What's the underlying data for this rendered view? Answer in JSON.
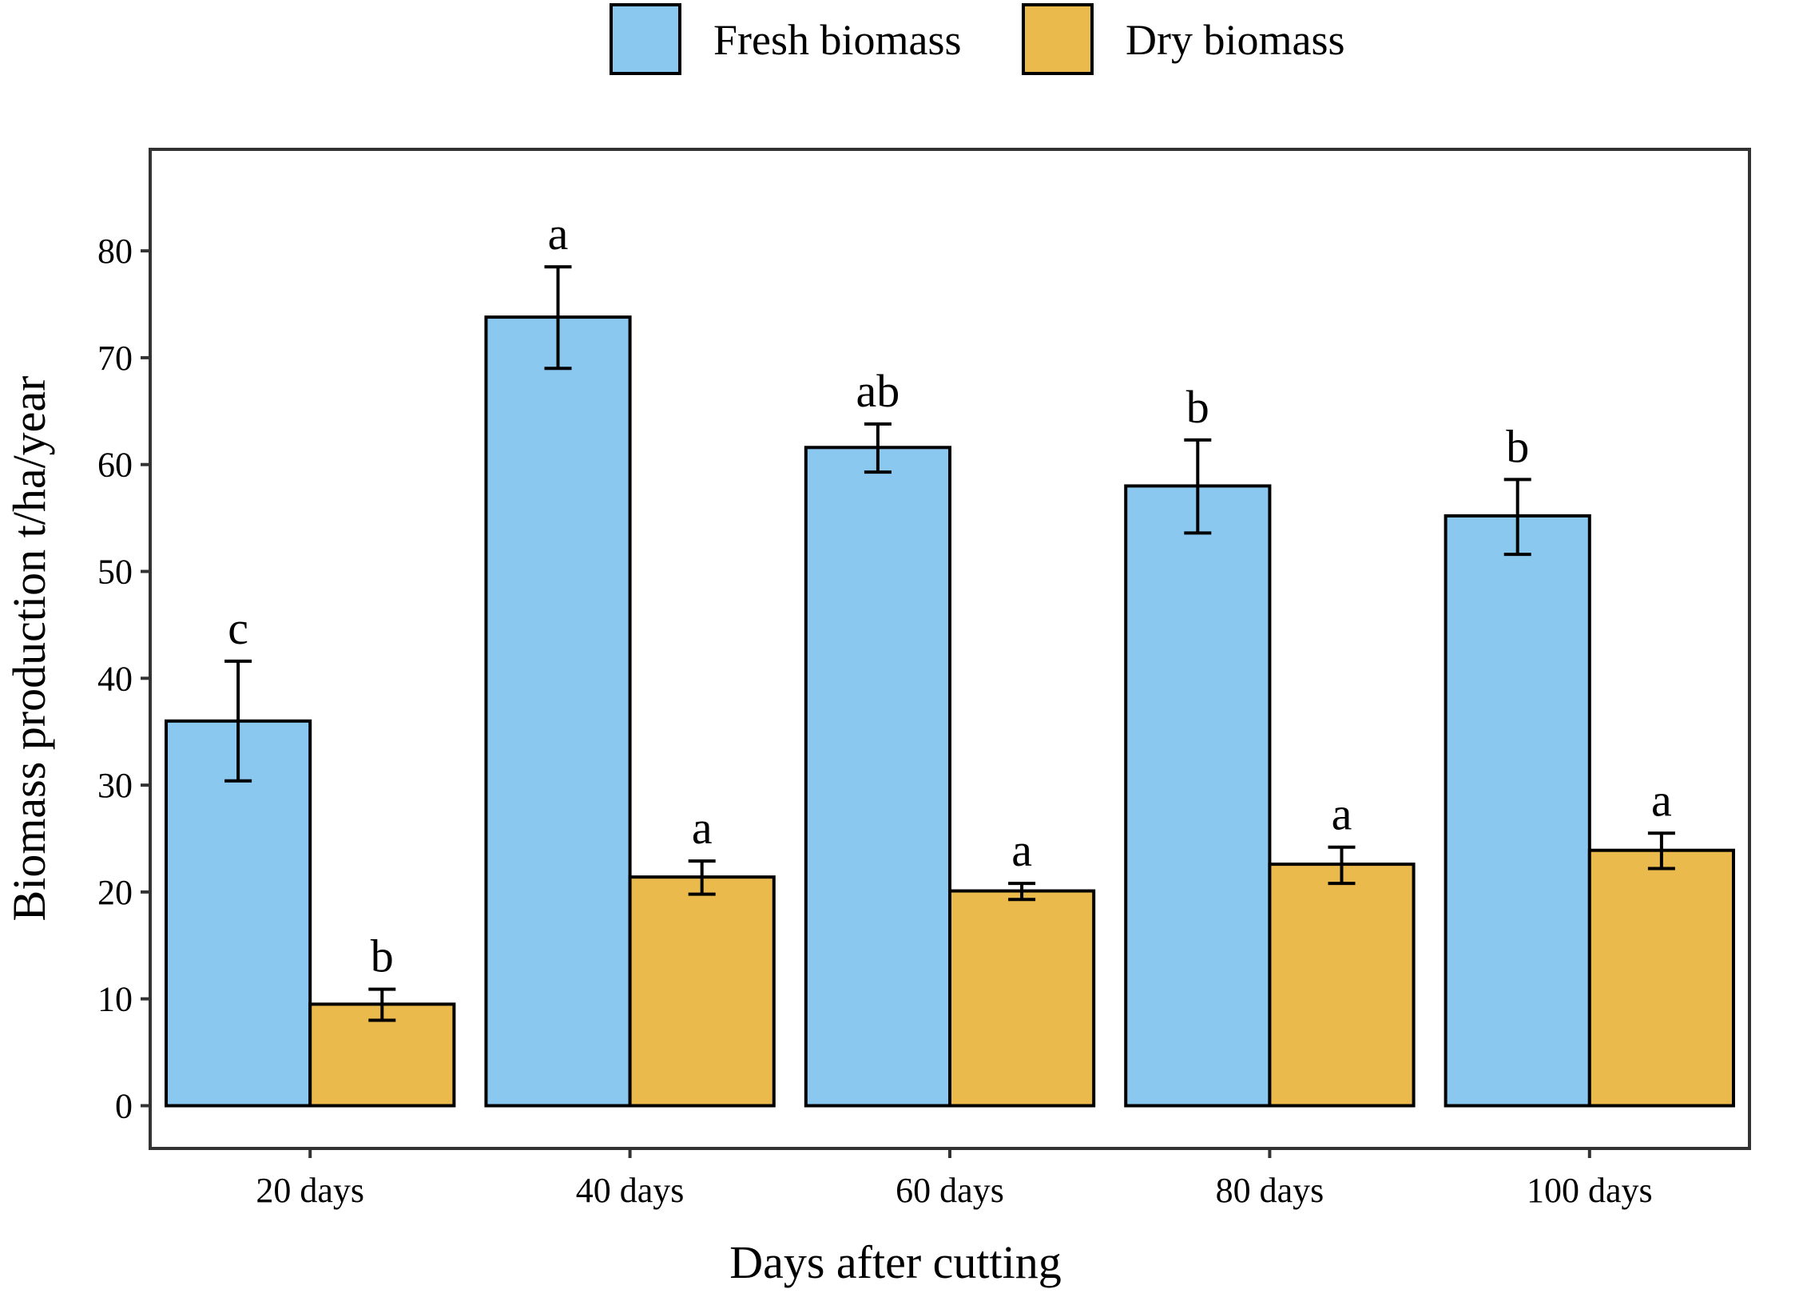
{
  "chart_data": {
    "type": "bar",
    "title": "",
    "xlabel": "Days after cutting",
    "ylabel": "Biomass production t/ha/year",
    "categories": [
      "20 days",
      "40 days",
      "60 days",
      "80 days",
      "100 days"
    ],
    "ylim": [
      -4,
      89.5
    ],
    "yticks": [
      0,
      10,
      20,
      30,
      40,
      50,
      60,
      70,
      80
    ],
    "ytick_labels": [
      "0",
      "10",
      "20",
      "30",
      "40",
      "50",
      "60",
      "70",
      "80"
    ],
    "grid": false,
    "legend_position": "top-center",
    "series": [
      {
        "name": "Fresh biomass",
        "color": "#8BC8F0",
        "values": [
          36.0,
          73.8,
          61.6,
          58.0,
          55.2
        ],
        "err_low": [
          30.4,
          69.0,
          59.3,
          53.6,
          51.6
        ],
        "err_high": [
          41.6,
          78.5,
          63.8,
          62.3,
          58.6
        ],
        "letters": [
          "c",
          "a",
          "ab",
          "b",
          "b"
        ]
      },
      {
        "name": "Dry biomass",
        "color": "#EBBA4C",
        "values": [
          9.5,
          21.4,
          20.1,
          22.6,
          23.9
        ],
        "err_low": [
          8.0,
          19.8,
          19.3,
          20.8,
          22.2
        ],
        "err_high": [
          10.9,
          22.9,
          20.8,
          24.2,
          25.5
        ],
        "letters": [
          "b",
          "a",
          "a",
          "a",
          "a"
        ]
      }
    ]
  }
}
